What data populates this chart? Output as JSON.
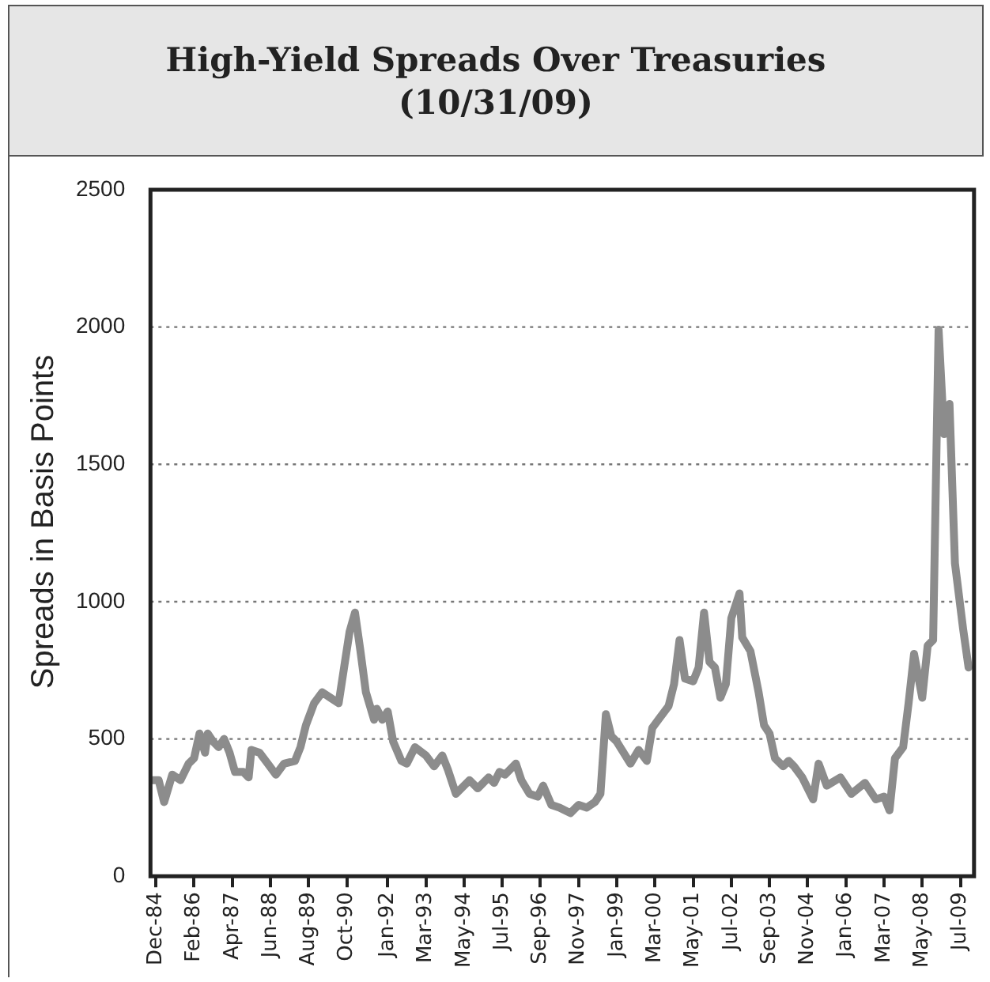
{
  "chart_data": {
    "type": "line",
    "title": "High-Yield Spreads Over Treasuries\n(10/31/09)",
    "ylabel": "Spreads in Basis Points",
    "x": [
      "1984-10",
      "1985-01",
      "1985-03",
      "1985-06",
      "1985-09",
      "1985-12",
      "1986-02",
      "1986-04",
      "1986-06",
      "1986-07",
      "1986-09",
      "1986-11",
      "1987-01",
      "1987-03",
      "1987-05",
      "1987-08",
      "1987-10",
      "1987-11",
      "1988-02",
      "1988-05",
      "1988-08",
      "1988-11",
      "1989-03",
      "1989-05",
      "1989-07",
      "1989-10",
      "1990-01",
      "1990-04",
      "1990-07",
      "1990-09",
      "1990-11",
      "1991-01",
      "1991-03",
      "1991-05",
      "1991-08",
      "1991-09",
      "1991-11",
      "1992-01",
      "1992-03",
      "1992-06",
      "1992-08",
      "1992-11",
      "1993-03",
      "1993-06",
      "1993-09",
      "1993-11",
      "1994-02",
      "1994-07",
      "1994-10",
      "1995-02",
      "1995-04",
      "1995-06",
      "1995-08",
      "1995-12",
      "1996-02",
      "1996-05",
      "1996-08",
      "1996-10",
      "1997-01",
      "1997-04",
      "1997-08",
      "1997-11",
      "1998-02",
      "1998-05",
      "1998-07",
      "1998-09",
      "1998-11",
      "1999-01",
      "1999-06",
      "1999-09",
      "1999-12",
      "2000-02",
      "2000-05",
      "2000-08",
      "2000-10",
      "2000-12",
      "2001-02",
      "2001-05",
      "2001-07",
      "2001-09",
      "2001-11",
      "2002-01",
      "2002-03",
      "2002-05",
      "2002-07",
      "2002-10",
      "2002-11",
      "2003-02",
      "2003-05",
      "2003-07",
      "2003-09",
      "2003-11",
      "2004-02",
      "2004-04",
      "2004-06",
      "2004-09",
      "2004-12",
      "2005-01",
      "2005-03",
      "2005-06",
      "2005-11",
      "2006-03",
      "2006-08",
      "2006-12",
      "2007-03",
      "2007-05",
      "2007-07",
      "2007-10",
      "2007-12",
      "2008-02",
      "2008-05",
      "2008-07",
      "2008-09",
      "2008-11",
      "2009-01",
      "2009-03",
      "2009-05",
      "2009-08",
      "2009-10"
    ],
    "series": [
      {
        "color": "#8c8c8c",
        "values": [
          350,
          350,
          270,
          370,
          350,
          410,
          430,
          520,
          450,
          520,
          490,
          470,
          500,
          450,
          380,
          380,
          360,
          460,
          450,
          410,
          370,
          410,
          420,
          470,
          550,
          630,
          670,
          650,
          630,
          760,
          890,
          960,
          820,
          670,
          570,
          610,
          570,
          600,
          490,
          420,
          410,
          470,
          440,
          400,
          440,
          390,
          300,
          350,
          320,
          360,
          340,
          380,
          370,
          410,
          350,
          300,
          290,
          330,
          260,
          250,
          230,
          260,
          250,
          270,
          300,
          590,
          510,
          490,
          410,
          460,
          420,
          540,
          580,
          620,
          700,
          860,
          720,
          710,
          760,
          960,
          780,
          760,
          650,
          700,
          940,
          1030,
          870,
          820,
          670,
          550,
          520,
          430,
          400,
          420,
          400,
          360,
          300,
          280,
          410,
          330,
          360,
          300,
          340,
          280,
          290,
          240,
          430,
          470,
          630,
          810,
          650,
          840,
          860,
          1990,
          1610,
          1720,
          1140,
          900,
          760
        ]
      }
    ],
    "xlim": [
      "1984-10",
      "2009-12"
    ],
    "xticks": [
      {
        "value": "1984-12",
        "label": "Dec-84"
      },
      {
        "value": "1986-02",
        "label": "Feb-86"
      },
      {
        "value": "1987-04",
        "label": "Apr-87"
      },
      {
        "value": "1988-06",
        "label": "Jun-88"
      },
      {
        "value": "1989-08",
        "label": "Aug-89"
      },
      {
        "value": "1990-10",
        "label": "Oct-90"
      },
      {
        "value": "1992-01",
        "label": "Jan-92"
      },
      {
        "value": "1993-03",
        "label": "Mar-93"
      },
      {
        "value": "1994-05",
        "label": "May-94"
      },
      {
        "value": "1995-07",
        "label": "Jul-95"
      },
      {
        "value": "1996-09",
        "label": "Sep-96"
      },
      {
        "value": "1997-11",
        "label": "Nov-97"
      },
      {
        "value": "1999-01",
        "label": "Jan-99"
      },
      {
        "value": "2000-03",
        "label": "Mar-00"
      },
      {
        "value": "2001-05",
        "label": "May-01"
      },
      {
        "value": "2002-07",
        "label": "Jul-02"
      },
      {
        "value": "2003-09",
        "label": "Sep-03"
      },
      {
        "value": "2004-11",
        "label": "Nov-04"
      },
      {
        "value": "2006-01",
        "label": "Jan-06"
      },
      {
        "value": "2007-03",
        "label": "Mar-07"
      },
      {
        "value": "2008-05",
        "label": "May-08"
      },
      {
        "value": "2009-07",
        "label": "Jul-09"
      }
    ],
    "ylim": [
      0,
      2500
    ],
    "yticks": [
      0,
      500,
      1000,
      1500,
      2000,
      2500
    ],
    "grid": "y",
    "line_style": "solid",
    "marker": "none"
  }
}
